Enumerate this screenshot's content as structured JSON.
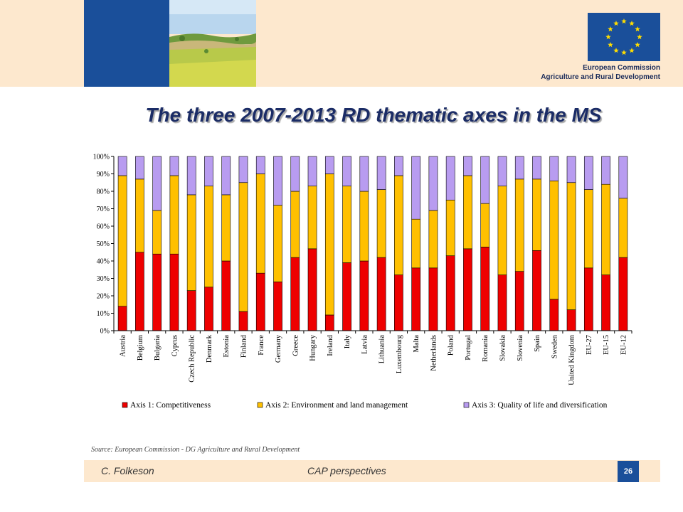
{
  "header": {
    "org_line1": "European Commission",
    "org_line2": "Agriculture and Rural Development"
  },
  "slide": {
    "title": "The three 2007-2013 RD thematic axes in the MS",
    "source": "Source: European Commission - DG Agriculture and Rural Development"
  },
  "footer": {
    "author": "C. Folkeson",
    "center": "CAP perspectives",
    "page_number": "26"
  },
  "colors": {
    "axis1": "#ee0000",
    "axis2": "#ffc000",
    "axis3": "#b89cf0",
    "brand_blue": "#1a4f9a",
    "header_band": "#fde8ce"
  },
  "chart_data": {
    "type": "bar",
    "stacked": true,
    "ylim": [
      0,
      100
    ],
    "y_ticks": [
      "0%",
      "10%",
      "20%",
      "30%",
      "40%",
      "50%",
      "60%",
      "70%",
      "80%",
      "90%",
      "100%"
    ],
    "grid": false,
    "legend_position": "bottom",
    "categories": [
      "Austria",
      "Belgium",
      "Bulgaria",
      "Cyprus",
      "Czech Republic",
      "Denmark",
      "Estonia",
      "Finland",
      "France",
      "Germany",
      "Greece",
      "Hungary",
      "Ireland",
      "Italy",
      "Latvia",
      "Lithuania",
      "Luxembourg",
      "Malta",
      "Netherlands",
      "Poland",
      "Portugal",
      "Romania",
      "Slovakia",
      "Slovenia",
      "Spain",
      "Sweden",
      "United Kingdom",
      "EU-27",
      "EU-15",
      "EU-12"
    ],
    "series": [
      {
        "name": "Axis 1: Competitiveness",
        "color": "#ee0000",
        "values": [
          14,
          45,
          44,
          44,
          23,
          25,
          40,
          11,
          33,
          28,
          42,
          47,
          9,
          39,
          40,
          42,
          32,
          36,
          36,
          43,
          47,
          48,
          32,
          34,
          46,
          18,
          12,
          36,
          32,
          42
        ]
      },
      {
        "name": "Axis 2: Environment and land management",
        "color": "#ffc000",
        "values": [
          75,
          42,
          25,
          45,
          55,
          58,
          38,
          74,
          57,
          44,
          38,
          36,
          81,
          44,
          40,
          39,
          57,
          28,
          33,
          32,
          42,
          25,
          51,
          53,
          41,
          68,
          73,
          45,
          52,
          34
        ]
      },
      {
        "name": "Axis 3: Quality of life and diversification",
        "color": "#b89cf0",
        "values": [
          11,
          13,
          31,
          11,
          22,
          17,
          22,
          15,
          10,
          28,
          20,
          17,
          10,
          17,
          20,
          19,
          11,
          36,
          31,
          25,
          11,
          27,
          17,
          13,
          13,
          14,
          15,
          19,
          16,
          24
        ]
      }
    ]
  }
}
